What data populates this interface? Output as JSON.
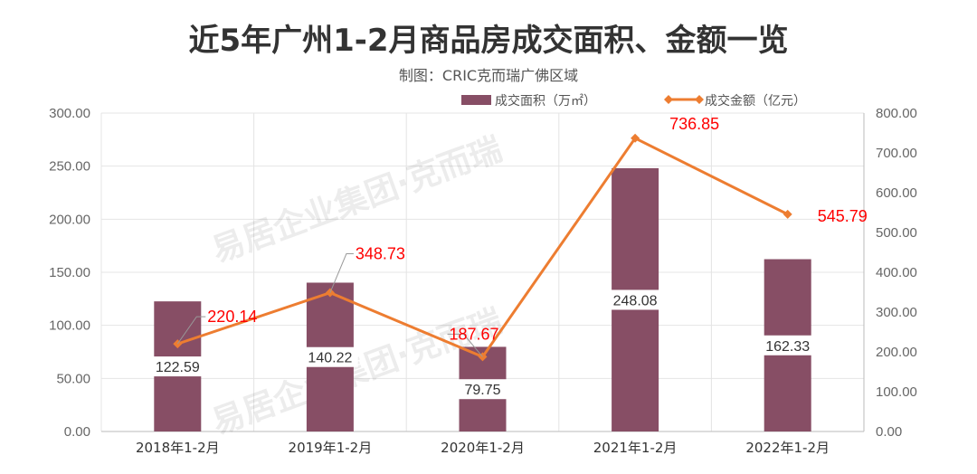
{
  "chart_data": {
    "type": "bar",
    "title": "近5年广州1-2月商品房成交面积、金额一览",
    "subtitle": "制图：CRIC克而瑞广佛区域",
    "categories": [
      "2018年1-2月",
      "2019年1-2月",
      "2020年1-2月",
      "2021年1-2月",
      "2022年1-2月"
    ],
    "series": [
      {
        "name": "成交面积（万㎡）",
        "type": "bar",
        "axis": "left",
        "values": [
          122.59,
          140.22,
          79.75,
          248.08,
          162.33
        ],
        "labels": [
          "122.59",
          "140.22",
          "79.75",
          "248.08",
          "162.33"
        ]
      },
      {
        "name": "成交金额（亿元）",
        "type": "line",
        "axis": "right",
        "values": [
          220.14,
          348.73,
          187.67,
          736.85,
          545.79
        ],
        "labels": [
          "220.14",
          "348.73",
          "187.67",
          "736.85",
          "545.79"
        ]
      }
    ],
    "ylim": [
      0,
      300
    ],
    "y2lim": [
      0,
      800
    ],
    "yticks": [
      "0.00",
      "50.00",
      "100.00",
      "150.00",
      "200.00",
      "250.00",
      "300.00"
    ],
    "y2ticks": [
      "0.00",
      "100.00",
      "200.00",
      "300.00",
      "400.00",
      "500.00",
      "600.00",
      "700.00",
      "800.00"
    ],
    "legend": "top",
    "grid": true,
    "watermark": "易居企业集团·克而瑞",
    "colors": {
      "bar": "#874e65",
      "line": "#ed7d31",
      "line_label": "#ff0000"
    }
  }
}
